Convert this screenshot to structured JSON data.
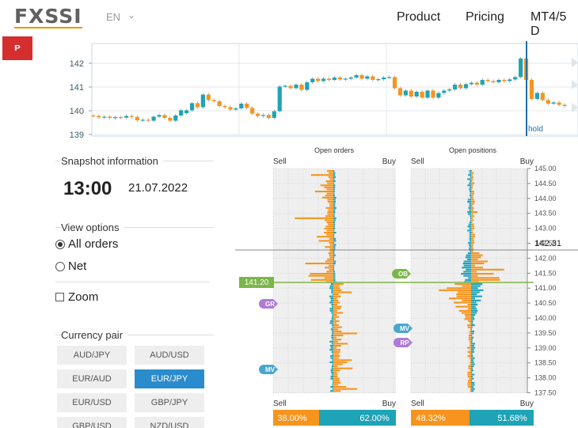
{
  "header": {
    "logo": "FXSSI",
    "lang": "EN",
    "nav": [
      "Product",
      "Pricing",
      "MT4/5 D"
    ],
    "pin_icon": "pinterest-icon"
  },
  "price_chart": {
    "y_ticks": [
      "142",
      "141",
      "140",
      "139"
    ],
    "hold_label": "hold",
    "candles": [
      [
        139.8,
        139.78
      ],
      [
        139.78,
        139.72
      ],
      [
        139.72,
        139.75
      ],
      [
        139.75,
        139.7
      ],
      [
        139.7,
        139.73
      ],
      [
        139.73,
        139.71
      ],
      [
        139.71,
        139.78
      ],
      [
        139.78,
        139.74
      ],
      [
        139.74,
        139.6
      ],
      [
        139.6,
        139.62
      ],
      [
        139.62,
        139.58
      ],
      [
        139.58,
        139.75
      ],
      [
        139.75,
        139.82
      ],
      [
        139.82,
        139.7
      ],
      [
        139.7,
        139.58
      ],
      [
        139.58,
        139.8
      ],
      [
        139.8,
        140.02
      ],
      [
        139.9,
        140.02
      ],
      [
        140.02,
        140.32
      ],
      [
        140.32,
        140.15
      ],
      [
        140.15,
        140.68
      ],
      [
        140.68,
        140.45
      ],
      [
        140.45,
        140.4
      ],
      [
        140.4,
        140.2
      ],
      [
        140.2,
        140.15
      ],
      [
        140.15,
        140.05
      ],
      [
        140.05,
        140.1
      ],
      [
        140.1,
        140.3
      ],
      [
        140.3,
        140.12
      ],
      [
        140.12,
        139.88
      ],
      [
        139.88,
        139.78
      ],
      [
        139.78,
        139.82
      ],
      [
        139.82,
        139.7
      ],
      [
        139.7,
        139.98
      ],
      [
        139.98,
        141.02
      ],
      [
        141.02,
        141.05
      ],
      [
        141.05,
        140.95
      ],
      [
        140.95,
        141.1
      ],
      [
        141.1,
        140.88
      ],
      [
        140.88,
        141.2
      ],
      [
        141.2,
        141.35
      ],
      [
        141.35,
        141.25
      ],
      [
        141.25,
        141.35
      ],
      [
        141.35,
        141.3
      ],
      [
        141.3,
        141.4
      ],
      [
        141.4,
        141.32
      ],
      [
        141.32,
        141.35
      ],
      [
        141.35,
        141.4
      ],
      [
        141.4,
        141.5
      ],
      [
        141.5,
        141.35
      ],
      [
        141.35,
        141.45
      ],
      [
        141.45,
        141.3
      ],
      [
        141.3,
        141.33
      ],
      [
        141.33,
        141.4
      ],
      [
        141.4,
        141.42
      ],
      [
        141.42,
        140.95
      ],
      [
        140.95,
        140.65
      ],
      [
        140.65,
        140.85
      ],
      [
        140.85,
        140.6
      ],
      [
        140.6,
        140.8
      ],
      [
        140.8,
        140.55
      ],
      [
        140.55,
        140.85
      ],
      [
        140.85,
        140.55
      ],
      [
        140.55,
        140.75
      ],
      [
        140.75,
        140.85
      ],
      [
        140.85,
        140.9
      ],
      [
        140.9,
        141.1
      ],
      [
        141.1,
        140.95
      ],
      [
        140.95,
        141.12
      ],
      [
        141.12,
        141.18
      ],
      [
        141.18,
        141.1
      ],
      [
        141.1,
        141.3
      ],
      [
        141.3,
        141.25
      ],
      [
        141.25,
        141.2
      ],
      [
        141.2,
        141.3
      ],
      [
        141.3,
        141.25
      ],
      [
        141.25,
        141.32
      ],
      [
        141.32,
        141.42
      ],
      [
        141.42,
        142.2
      ],
      [
        142.2,
        141.3
      ],
      [
        141.3,
        140.5
      ],
      [
        140.5,
        140.75
      ],
      [
        140.75,
        140.45
      ],
      [
        140.45,
        140.3
      ],
      [
        140.3,
        140.35
      ],
      [
        140.35,
        140.25
      ],
      [
        140.25,
        140.2
      ]
    ]
  },
  "snapshot": {
    "title": "Snapshot information",
    "time": "13:00",
    "date": "21.07.2022"
  },
  "view_options": {
    "title": "View options",
    "all_orders": "All orders",
    "net": "Net",
    "zoom": "Zoom"
  },
  "currency_pair": {
    "title": "Currency pair",
    "pairs": [
      "AUD/JPY",
      "AUD/USD",
      "EUR/AUD",
      "EUR/JPY",
      "EUR/USD",
      "GBP/JPY",
      "GBP/USD",
      "NZD/USD"
    ],
    "selected": "EUR/JPY"
  },
  "order_book": {
    "open_orders_title": "Open orders",
    "open_positions_title": "Open positions",
    "sell_label": "Sell",
    "buy_label": "Buy",
    "price_axis": [
      "145.00",
      "144.50",
      "144.00",
      "143.50",
      "143.00",
      "142.50",
      "142.00",
      "141.50",
      "141.00",
      "140.50",
      "140.00",
      "139.50",
      "139.00",
      "138.50",
      "138.00",
      "137.50"
    ],
    "current_price": "142.31",
    "snapshot_price": "141.20",
    "markers": {
      "gr": "GR",
      "mv": "MV",
      "ob": "OB",
      "rp": "RP"
    },
    "orders_sell_pct": "38.00%",
    "orders_buy_pct": "62.00%",
    "positions_sell_pct": "48.32%",
    "positions_buy_pct": "51.68%",
    "colors": {
      "sell": "#f7941d",
      "buy": "#1fa3b6",
      "grid_bg": "#efefef",
      "marker_purple": "#b07ad8",
      "marker_blue": "#4aa6d0",
      "marker_green": "#7ab648"
    }
  }
}
